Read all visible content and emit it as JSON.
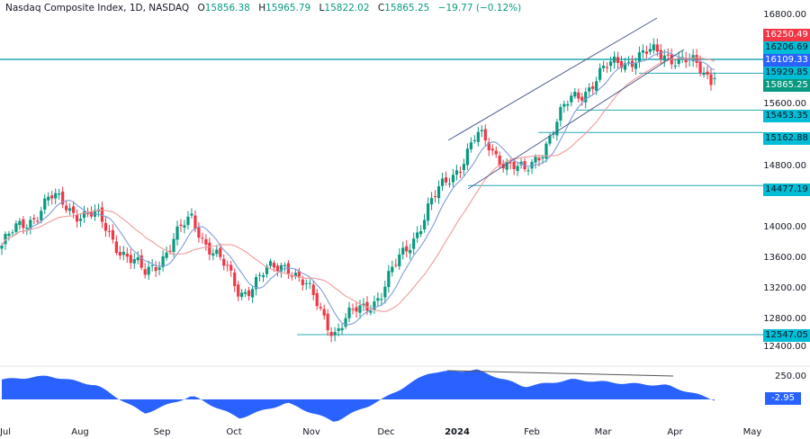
{
  "header": {
    "symbol": "Nasdaq Composite Index, 1D, NASDAQ",
    "open_label": "O",
    "open": "15856.38",
    "high_label": "H",
    "high": "15965.79",
    "low_label": "L",
    "low": "15822.02",
    "close_label": "C",
    "close": "15865.25",
    "change": "−19.77 (−0.12%)"
  },
  "price_axis": {
    "ticks": [
      "16800.00",
      "15600.00",
      "14800.00",
      "14000.00",
      "13600.00",
      "13200.00",
      "12800.00",
      "12400.00"
    ],
    "tags": [
      {
        "value": "16250.49",
        "color": "#f23645",
        "kind": "high-marker"
      },
      {
        "value": "16206.69",
        "color": "#00bcd4",
        "kind": "level"
      },
      {
        "value": "16109.33",
        "color": "#2962ff",
        "kind": "ma-fast"
      },
      {
        "value": "15929.85",
        "color": "#00bcd4",
        "kind": "level"
      },
      {
        "value": "15865.25",
        "color": "#089981",
        "kind": "last-price"
      },
      {
        "value": "15453.35",
        "color": "#00bcd4",
        "kind": "support"
      },
      {
        "value": "15162.88",
        "color": "#00bcd4",
        "kind": "support"
      },
      {
        "value": "14477.19",
        "color": "#00bcd4",
        "kind": "support"
      },
      {
        "value": "12547.05",
        "color": "#00bcd4",
        "kind": "support"
      }
    ]
  },
  "indicator_axis": {
    "tick": "250.00",
    "value": "-2.95",
    "value_color": "#2962ff"
  },
  "time_axis": {
    "labels": [
      "Jul",
      "Aug",
      "Sep",
      "Oct",
      "Nov",
      "Dec",
      "2024",
      "Feb",
      "Mar",
      "Apr",
      "May"
    ]
  },
  "colors": {
    "up": "#089981",
    "down": "#f23645",
    "ma_fast": "#7e9cd8",
    "ma_slow": "#f09a9a",
    "level_line": "#26a9b5",
    "channel": "#4a5a8c",
    "oscillator": "#2962ff"
  },
  "chart_data": [
    {
      "type": "candlestick",
      "title": "Nasdaq Composite Index, 1D, NASDAQ",
      "xlabel": "",
      "ylabel": "",
      "x_range": [
        "Jul 2023",
        "May 2024"
      ],
      "ylim": [
        12400,
        16800
      ],
      "grid": false,
      "last_ohlc": {
        "open": 15856.38,
        "high": 15965.79,
        "low": 15822.02,
        "close": 15865.25,
        "change": -19.77,
        "change_pct": -0.12
      },
      "horizontal_levels": [
        16250.49,
        16206.69,
        16109.33,
        15929.85,
        15453.35,
        15162.88,
        14477.19,
        12547.05
      ],
      "overlays": [
        "fast moving average (blue)",
        "slow moving average (red)",
        "ascending channel (Dec 2023 – Apr 2024)"
      ],
      "approx_monthly_path": [
        {
          "date": "Jul",
          "close": 13700
        },
        {
          "date": "late Jul",
          "close": 14300
        },
        {
          "date": "Aug",
          "close": 14050
        },
        {
          "date": "mid Aug",
          "close": 13300
        },
        {
          "date": "Sep",
          "close": 14050
        },
        {
          "date": "late Sep",
          "close": 13100
        },
        {
          "date": "Oct",
          "close": 13500
        },
        {
          "date": "late Oct",
          "close": 12600
        },
        {
          "date": "Nov",
          "close": 13100
        },
        {
          "date": "Dec",
          "close": 14200
        },
        {
          "date": "late Dec",
          "close": 15100
        },
        {
          "date": "Jan 2024",
          "close": 14600
        },
        {
          "date": "Feb",
          "close": 15600
        },
        {
          "date": "Mar",
          "close": 16100
        },
        {
          "date": "Apr",
          "close": 16200
        },
        {
          "date": "mid Apr",
          "close": 15865
        }
      ]
    },
    {
      "type": "area",
      "title": "Oscillator",
      "ylim": [
        -250,
        300
      ],
      "ticks": [
        250
      ],
      "last_value": -2.95,
      "annotations": [
        "bearish divergence trendline from late Dec 2023 to Apr 2024"
      ],
      "approx_path": [
        {
          "date": "Jul",
          "value": 170
        },
        {
          "date": "late Jul",
          "value": 200
        },
        {
          "date": "Aug",
          "value": 120
        },
        {
          "date": "mid Aug",
          "value": -120
        },
        {
          "date": "Sep",
          "value": 30
        },
        {
          "date": "late Sep",
          "value": -160
        },
        {
          "date": "Oct",
          "value": -30
        },
        {
          "date": "late Oct",
          "value": -190
        },
        {
          "date": "Nov",
          "value": 0
        },
        {
          "date": "Dec",
          "value": 230
        },
        {
          "date": "late Dec",
          "value": 250
        },
        {
          "date": "Jan 2024",
          "value": 110
        },
        {
          "date": "Feb",
          "value": 170
        },
        {
          "date": "Mar",
          "value": 140
        },
        {
          "date": "Apr",
          "value": 120
        },
        {
          "date": "mid Apr",
          "value": -3
        }
      ]
    }
  ]
}
